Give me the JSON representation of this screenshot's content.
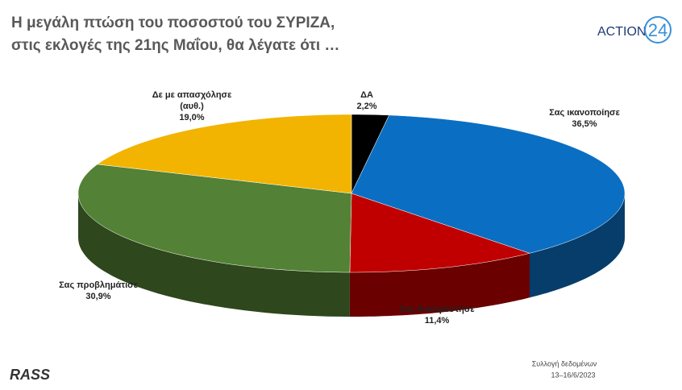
{
  "brand": {
    "name": "ACTION",
    "number": "24"
  },
  "chart_data": {
    "type": "pie3d",
    "title": [
      "Η μεγάλη πτώση του ποσοστού του ΣΥΡΙΖΑ,",
      "στις εκλογές της 21ης Μαΐου, θα λέγατε ότι …"
    ],
    "categories": [
      "ΔΑ",
      "Σας ικανοποίησε",
      "Σας δυσαρέστησε",
      "Σας προβλημάτισε",
      "Δε με απασχόλησε\n(αυθ.)"
    ],
    "values": [
      2.2,
      36.5,
      11.4,
      30.9,
      19.0
    ],
    "value_labels": [
      "2,2%",
      "36,5%",
      "11,4%",
      "30,9%",
      "19,0%"
    ],
    "colors": [
      "#000000",
      "#0a6fc2",
      "#c00000",
      "#538135",
      "#f2b400"
    ]
  },
  "footer": {
    "source_logo": "RASS",
    "note": "Συλλογή δεδομένων",
    "dates": "13–16/6/2023"
  }
}
